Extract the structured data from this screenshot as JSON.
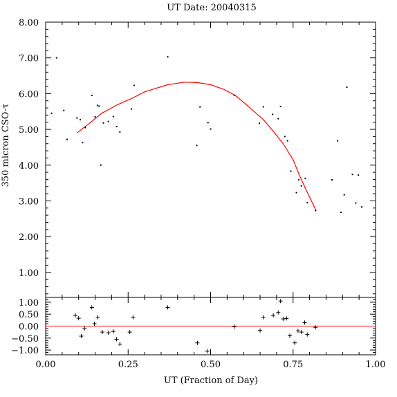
{
  "chart_data": [
    {
      "type": "scatter",
      "panel": "main",
      "title": "UT Date: 20040315",
      "ylabel": "350 micron CSO-τ",
      "xlim": [
        0.0,
        1.0
      ],
      "ylim": [
        0.3,
        8.0
      ],
      "yticks": [
        1.0,
        2.0,
        3.0,
        4.0,
        5.0,
        6.0,
        7.0,
        8.0
      ],
      "ytick_labels": [
        "1.00",
        "2.00",
        "3.00",
        "4.00",
        "5.00",
        "6.00",
        "7.00",
        "8.00"
      ],
      "colors": {
        "points": "#000000",
        "fit": "#ff0000"
      },
      "points": [
        [
          0.018,
          5.45
        ],
        [
          0.033,
          7.0
        ],
        [
          0.055,
          5.53
        ],
        [
          0.065,
          4.72
        ],
        [
          0.095,
          5.32
        ],
        [
          0.105,
          5.27
        ],
        [
          0.112,
          4.63
        ],
        [
          0.12,
          5.05
        ],
        [
          0.14,
          5.95
        ],
        [
          0.15,
          5.35
        ],
        [
          0.157,
          5.67
        ],
        [
          0.162,
          5.65
        ],
        [
          0.167,
          4.0
        ],
        [
          0.175,
          5.18
        ],
        [
          0.19,
          5.22
        ],
        [
          0.205,
          5.36
        ],
        [
          0.215,
          5.08
        ],
        [
          0.225,
          4.93
        ],
        [
          0.26,
          5.57
        ],
        [
          0.268,
          6.23
        ],
        [
          0.37,
          7.03
        ],
        [
          0.458,
          4.55
        ],
        [
          0.468,
          5.63
        ],
        [
          0.492,
          5.19
        ],
        [
          0.5,
          5.01
        ],
        [
          0.572,
          5.95
        ],
        [
          0.648,
          5.17
        ],
        [
          0.66,
          5.63
        ],
        [
          0.688,
          5.42
        ],
        [
          0.705,
          5.3
        ],
        [
          0.712,
          5.64
        ],
        [
          0.725,
          4.8
        ],
        [
          0.733,
          4.68
        ],
        [
          0.743,
          3.83
        ],
        [
          0.76,
          3.23
        ],
        [
          0.767,
          3.59
        ],
        [
          0.775,
          3.42
        ],
        [
          0.787,
          3.63
        ],
        [
          0.793,
          2.95
        ],
        [
          0.818,
          2.73
        ],
        [
          0.868,
          3.59
        ],
        [
          0.885,
          4.68
        ],
        [
          0.895,
          2.68
        ],
        [
          0.905,
          3.17
        ],
        [
          0.913,
          6.18
        ],
        [
          0.93,
          3.74
        ],
        [
          0.94,
          2.94
        ],
        [
          0.948,
          3.72
        ],
        [
          0.958,
          2.83
        ]
      ],
      "fit_curve": [
        [
          0.095,
          4.9
        ],
        [
          0.13,
          5.15
        ],
        [
          0.17,
          5.45
        ],
        [
          0.22,
          5.7
        ],
        [
          0.26,
          5.86
        ],
        [
          0.3,
          6.05
        ],
        [
          0.37,
          6.25
        ],
        [
          0.42,
          6.32
        ],
        [
          0.46,
          6.31
        ],
        [
          0.5,
          6.25
        ],
        [
          0.54,
          6.12
        ],
        [
          0.575,
          5.95
        ],
        [
          0.61,
          5.68
        ],
        [
          0.66,
          5.27
        ],
        [
          0.69,
          4.95
        ],
        [
          0.72,
          4.6
        ],
        [
          0.75,
          4.15
        ],
        [
          0.77,
          3.7
        ],
        [
          0.79,
          3.3
        ],
        [
          0.82,
          2.72
        ]
      ]
    },
    {
      "type": "scatter",
      "panel": "residuals",
      "xlabel": "UT (Fraction of Day)",
      "xlim": [
        0.0,
        1.0
      ],
      "ylim": [
        -1.2,
        1.2
      ],
      "xticks": [
        0.0,
        0.25,
        0.5,
        0.75,
        1.0
      ],
      "xtick_labels": [
        "0.00",
        "0.25",
        "0.50",
        "0.75",
        "1.00"
      ],
      "yticks": [
        -1.0,
        -0.5,
        0.0,
        0.5,
        1.0
      ],
      "ytick_labels": [
        "−1.00",
        "−0.50",
        "0.00",
        "0.50",
        "1.00"
      ],
      "colors": {
        "points": "#000000",
        "zero_line": "#ff0000"
      },
      "points": [
        [
          0.09,
          0.45
        ],
        [
          0.1,
          0.33
        ],
        [
          0.108,
          -0.42
        ],
        [
          0.118,
          -0.1
        ],
        [
          0.14,
          0.78
        ],
        [
          0.148,
          0.1
        ],
        [
          0.158,
          0.37
        ],
        [
          0.172,
          -0.25
        ],
        [
          0.19,
          -0.28
        ],
        [
          0.205,
          -0.22
        ],
        [
          0.215,
          -0.55
        ],
        [
          0.225,
          -0.75
        ],
        [
          0.255,
          -0.25
        ],
        [
          0.265,
          0.37
        ],
        [
          0.37,
          0.78
        ],
        [
          0.46,
          -0.7
        ],
        [
          0.49,
          -1.05
        ],
        [
          0.572,
          -0.02
        ],
        [
          0.65,
          -0.18
        ],
        [
          0.66,
          0.37
        ],
        [
          0.69,
          0.45
        ],
        [
          0.705,
          0.57
        ],
        [
          0.712,
          1.05
        ],
        [
          0.72,
          0.3
        ],
        [
          0.73,
          0.32
        ],
        [
          0.74,
          -0.4
        ],
        [
          0.755,
          -0.7
        ],
        [
          0.765,
          -0.2
        ],
        [
          0.775,
          -0.25
        ],
        [
          0.785,
          0.15
        ],
        [
          0.793,
          -0.35
        ],
        [
          0.818,
          -0.05
        ]
      ]
    }
  ]
}
